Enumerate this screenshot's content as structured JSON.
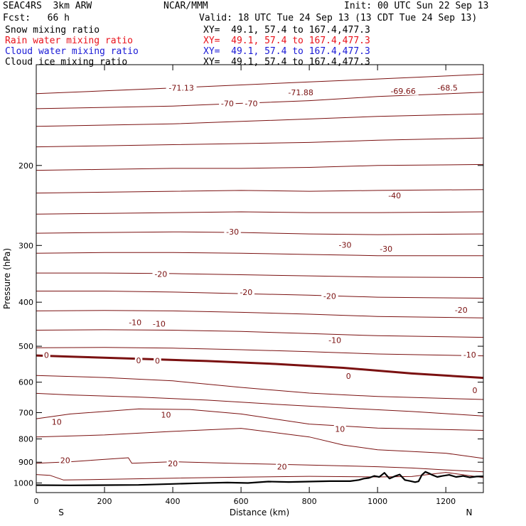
{
  "header": {
    "model": "SEAC4RS  3km ARW",
    "org": "NCAR/MMM",
    "init": "Init: 00 UTC Sun 22 Sep 13",
    "fcst": "Fcst:   66 h",
    "valid": "Valid: 18 UTC Tue 24 Sep 13 (13 CDT Tue 24 Sep 13)"
  },
  "fields": [
    {
      "name": "Snow mixing ratio",
      "xy": "XY=  49.1, 57.4 to 167.4,477.3",
      "color": "#000000"
    },
    {
      "name": "Rain water mixing ratio",
      "xy": "XY=  49.1, 57.4 to 167.4,477.3",
      "color": "#e8121b"
    },
    {
      "name": "Cloud water mixing ratio",
      "xy": "XY=  49.1, 57.4 to 167.4,477.3",
      "color": "#1a1ad6"
    },
    {
      "name": "Cloud ice mixing ratio",
      "xy": "XY=  49.1, 57.4 to 167.4,477.3",
      "color": "#000000"
    }
  ],
  "chart_data": {
    "type": "line",
    "xlabel": "Distance (km)",
    "ylabel": "Pressure (hPa)",
    "xlim": [
      0,
      1310
    ],
    "ylim": [
      1050,
      120
    ],
    "y_scale": "log",
    "x_ticks": [
      0,
      200,
      400,
      600,
      800,
      1000,
      1200
    ],
    "y_ticks": [
      200,
      300,
      400,
      500,
      600,
      700,
      800,
      900,
      1000
    ],
    "x_end_labels": {
      "left": "S",
      "right": "N"
    },
    "isotherm_color": "#7a1010",
    "terrain_color": "#000000",
    "isotherms": [
      {
        "x": [
          0,
          200,
          400,
          600,
          800,
          1000,
          1310
        ],
        "p": [
          139,
          137,
          135,
          133,
          131,
          129,
          126
        ]
      },
      {
        "x": [
          0,
          200,
          400,
          600,
          800,
          1000,
          1310
        ],
        "p": [
          150,
          149,
          148,
          146,
          144,
          141,
          138
        ]
      },
      {
        "x": [
          0,
          200,
          400,
          600,
          800,
          1000,
          1310
        ],
        "p": [
          164,
          163,
          162,
          160,
          158,
          156,
          154
        ]
      },
      {
        "x": [
          0,
          200,
          400,
          600,
          800,
          1000,
          1310
        ],
        "p": [
          182,
          181,
          180,
          179,
          178,
          176,
          174
        ]
      },
      {
        "x": [
          0,
          200,
          400,
          600,
          800,
          1000,
          1310
        ],
        "p": [
          205,
          204,
          203,
          203,
          202,
          200,
          199
        ]
      },
      {
        "x": [
          0,
          200,
          400,
          600,
          800,
          1000,
          1310
        ],
        "p": [
          230,
          229,
          228,
          227,
          228,
          227,
          226
        ]
      },
      {
        "x": [
          0,
          200,
          400,
          600,
          800,
          1000,
          1310
        ],
        "p": [
          256,
          255,
          254,
          253,
          254,
          254,
          253
        ]
      },
      {
        "x": [
          0,
          200,
          400,
          600,
          800,
          1000,
          1310
        ],
        "p": [
          282,
          281,
          280,
          281,
          283,
          284,
          283
        ]
      },
      {
        "x": [
          0,
          200,
          400,
          600,
          800,
          1000,
          1310
        ],
        "p": [
          312,
          311,
          311,
          312,
          314,
          316,
          316
        ]
      },
      {
        "x": [
          0,
          200,
          400,
          600,
          800,
          1000,
          1310
        ],
        "p": [
          345,
          345,
          346,
          348,
          350,
          352,
          353
        ]
      },
      {
        "x": [
          0,
          200,
          400,
          600,
          800,
          1000,
          1310
        ],
        "p": [
          378,
          378,
          380,
          383,
          386,
          390,
          392
        ]
      },
      {
        "x": [
          0,
          200,
          400,
          600,
          800,
          1000,
          1310
        ],
        "p": [
          418,
          417,
          418,
          421,
          425,
          430,
          433
        ]
      },
      {
        "x": [
          0,
          200,
          400,
          600,
          800,
          1000,
          1310
        ],
        "p": [
          461,
          460,
          461,
          464,
          469,
          474,
          478
        ]
      },
      {
        "x": [
          0,
          200,
          400,
          600,
          800,
          1000,
          1310
        ],
        "p": [
          504,
          503,
          505,
          509,
          514,
          520,
          525
        ]
      },
      {
        "x": [
          0,
          100,
          300,
          500,
          700,
          900,
          1100,
          1310
        ],
        "p": [
          524,
          527,
          533,
          539,
          547,
          558,
          574,
          587
        ],
        "bold": true
      },
      {
        "x": [
          0,
          200,
          400,
          600,
          800,
          1000,
          1310
        ],
        "p": [
          580,
          586,
          596,
          616,
          634,
          645,
          655
        ]
      },
      {
        "x": [
          0,
          100,
          300,
          500,
          700,
          900,
          1100,
          1310
        ],
        "p": [
          635,
          640,
          647,
          657,
          671,
          684,
          696,
          712
        ]
      },
      {
        "x": [
          0,
          100,
          300,
          450,
          600,
          800,
          1000,
          1310
        ],
        "p": [
          722,
          705,
          687,
          689,
          705,
          742,
          757,
          766
        ]
      },
      {
        "x": [
          0,
          200,
          400,
          600,
          800,
          900,
          1000,
          1200,
          1310
        ],
        "p": [
          792,
          784,
          770,
          758,
          792,
          825,
          845,
          860,
          883
        ]
      },
      {
        "x": [
          0,
          100,
          270,
          280,
          400,
          600,
          800,
          1000,
          1100,
          1200,
          1310
        ],
        "p": [
          905,
          898,
          880,
          905,
          898,
          906,
          913,
          921,
          927,
          936,
          945
        ]
      },
      {
        "x": [
          0,
          40,
          80,
          200,
          400,
          600,
          800,
          1000,
          1100,
          1200,
          1310
        ],
        "p": [
          958,
          962,
          985,
          982,
          976,
          971,
          967,
          970,
          968,
          948,
          973
        ]
      }
    ],
    "contour_labels": [
      {
        "text": "-71.13",
        "x": 425,
        "p": 135
      },
      {
        "text": "-70",
        "x": 560,
        "p": 146
      },
      {
        "text": "-70",
        "x": 630,
        "p": 146
      },
      {
        "text": "-71.88",
        "x": 775,
        "p": 138
      },
      {
        "text": "-69.66",
        "x": 1075,
        "p": 137
      },
      {
        "text": "-68.5",
        "x": 1205,
        "p": 135
      },
      {
        "text": "-40",
        "x": 1050,
        "p": 233
      },
      {
        "text": "-30",
        "x": 575,
        "p": 280
      },
      {
        "text": "-30",
        "x": 905,
        "p": 299
      },
      {
        "text": "-30",
        "x": 1025,
        "p": 305
      },
      {
        "text": "-20",
        "x": 365,
        "p": 347
      },
      {
        "text": "-20",
        "x": 615,
        "p": 380
      },
      {
        "text": "-20",
        "x": 860,
        "p": 388
      },
      {
        "text": "-20",
        "x": 1245,
        "p": 416
      },
      {
        "text": "-10",
        "x": 290,
        "p": 443
      },
      {
        "text": "-10",
        "x": 360,
        "p": 446
      },
      {
        "text": "-10",
        "x": 875,
        "p": 485
      },
      {
        "text": "-10",
        "x": 1270,
        "p": 522
      },
      {
        "text": "0",
        "x": 30,
        "p": 523
      },
      {
        "text": "0",
        "x": 300,
        "p": 537
      },
      {
        "text": "0",
        "x": 355,
        "p": 538
      },
      {
        "text": "0",
        "x": 915,
        "p": 581
      },
      {
        "text": "0",
        "x": 1285,
        "p": 625
      },
      {
        "text": "10",
        "x": 60,
        "p": 733
      },
      {
        "text": "10",
        "x": 380,
        "p": 708
      },
      {
        "text": "10",
        "x": 890,
        "p": 761
      },
      {
        "text": "20",
        "x": 85,
        "p": 891
      },
      {
        "text": "20",
        "x": 400,
        "p": 905
      },
      {
        "text": "20",
        "x": 720,
        "p": 920
      }
    ],
    "terrain": {
      "x": [
        0,
        100,
        200,
        300,
        400,
        480,
        560,
        620,
        680,
        740,
        800,
        860,
        920,
        945,
        960,
        975,
        990,
        1005,
        1020,
        1035,
        1050,
        1065,
        1080,
        1095,
        1110,
        1120,
        1130,
        1140,
        1150,
        1160,
        1175,
        1190,
        1210,
        1230,
        1250,
        1270,
        1290,
        1310
      ],
      "p": [
        1011,
        1012,
        1011,
        1010,
        1005,
        1001,
        998,
        1000,
        993,
        995,
        993,
        991,
        991,
        985,
        978,
        975,
        965,
        970,
        950,
        978,
        967,
        958,
        985,
        990,
        996,
        992,
        960,
        945,
        952,
        960,
        970,
        965,
        960,
        970,
        965,
        972,
        968,
        967
      ]
    }
  }
}
